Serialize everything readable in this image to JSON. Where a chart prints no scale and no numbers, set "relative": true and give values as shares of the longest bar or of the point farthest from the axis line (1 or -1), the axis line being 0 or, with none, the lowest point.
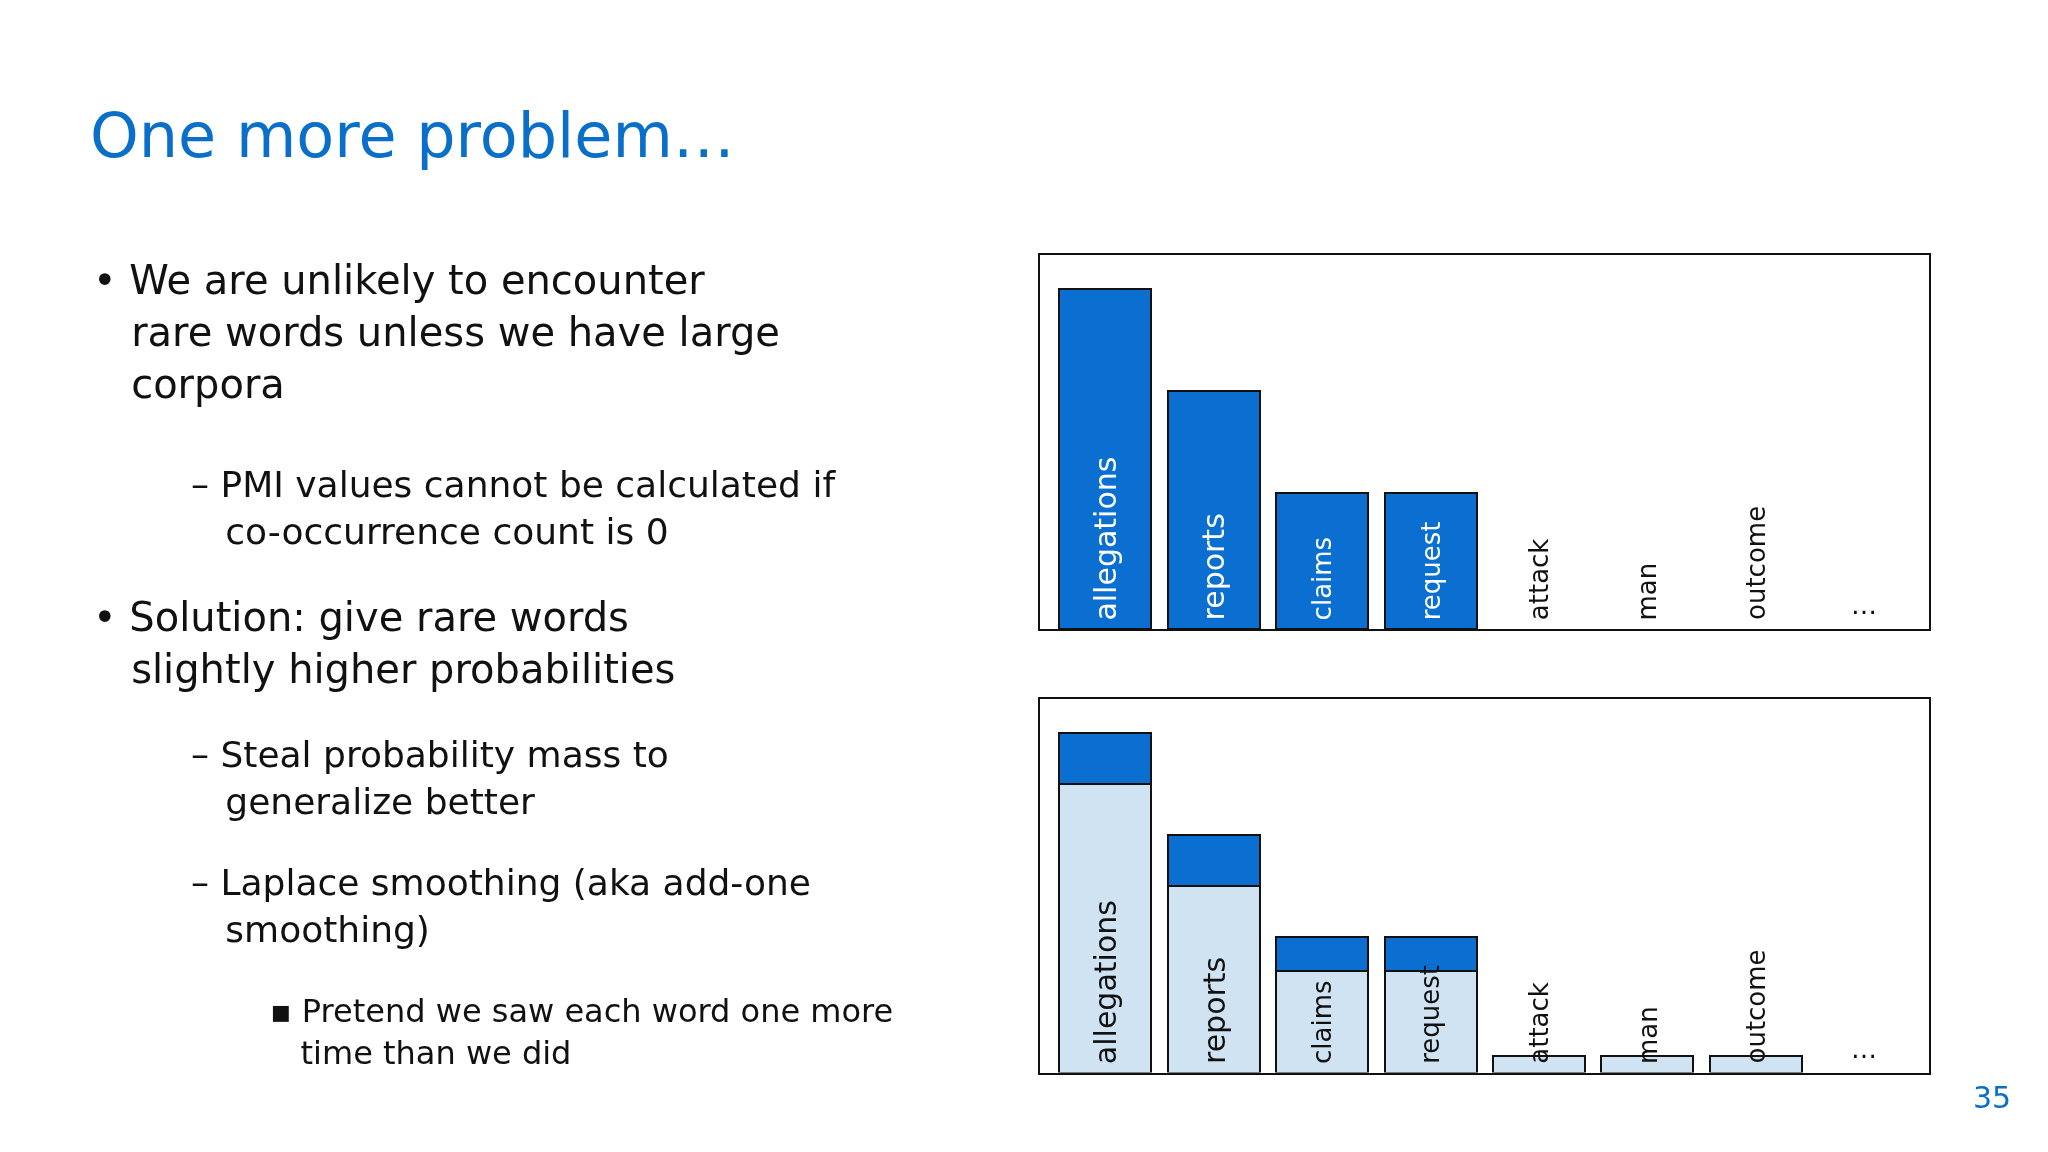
{
  "chart_data": [
    {
      "type": "other",
      "title": "One more problem…",
      "annotations": [
        "• We are unlikely to encounter rare words unless we have large corpora",
        "– PMI values cannot be calculated if co-occurrence count is 0",
        "• Solution: give rare words slightly higher probabilities",
        "– Steal probability mass to generalize better",
        "– Laplace smoothing (aka add-one smoothing)",
        "▪ Pretend we saw each word one more time than we did",
        "35"
      ]
    },
    {
      "type": "bar",
      "relative": true,
      "categories": [
        "allegations",
        "reports",
        "claims",
        "request",
        "attack",
        "man",
        "outcome",
        "…"
      ],
      "series": [
        {
          "color": "#0a6fd1",
          "values": [
            1,
            0.7,
            0.4,
            0.4,
            0,
            0,
            0,
            null
          ]
        }
      ]
    },
    {
      "type": "bar",
      "relative": true,
      "stacked": true,
      "categories": [
        "allegations",
        "reports",
        "claims",
        "request",
        "attack",
        "man",
        "outcome",
        "…"
      ],
      "series": [
        {
          "color": "#cfe3f2",
          "values": [
            0.85,
            0.55,
            0.3,
            0.3,
            0.05,
            0.05,
            0.05,
            null
          ]
        },
        {
          "color": "#0a6fd1",
          "values": [
            0.15,
            0.15,
            0.1,
            0.1,
            0,
            0,
            0,
            null
          ]
        }
      ]
    }
  ]
}
